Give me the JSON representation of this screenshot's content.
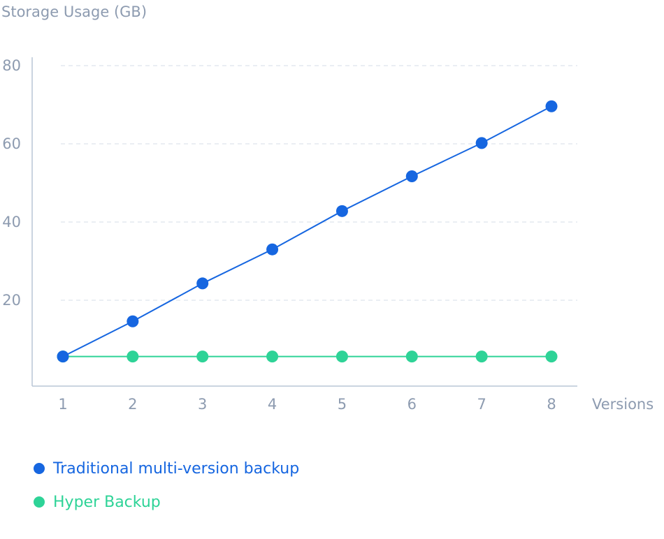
{
  "chart_data": {
    "type": "line",
    "ylabel": "Storage Usage (GB)",
    "xlabel": "Versions",
    "x": [
      1,
      2,
      3,
      4,
      5,
      6,
      7,
      8
    ],
    "yticks": [
      20,
      40,
      60,
      80
    ],
    "ylim": [
      0,
      80
    ],
    "grid": true,
    "legend_position": "bottom-left",
    "series": [
      {
        "name": "Traditional multi-version backup",
        "color": "#1666e0",
        "values": [
          5.6,
          14.6,
          24.3,
          33,
          42.8,
          51.7,
          60.2,
          69.6
        ]
      },
      {
        "name": "Hyper Backup",
        "color": "#2ed397",
        "values": [
          5.6,
          5.6,
          5.6,
          5.6,
          5.6,
          5.6,
          5.6,
          5.6
        ]
      }
    ]
  },
  "colors": {
    "axis": "#b9c6d6",
    "grid": "#dde4ec",
    "tick_text": "#8d9bb0"
  }
}
